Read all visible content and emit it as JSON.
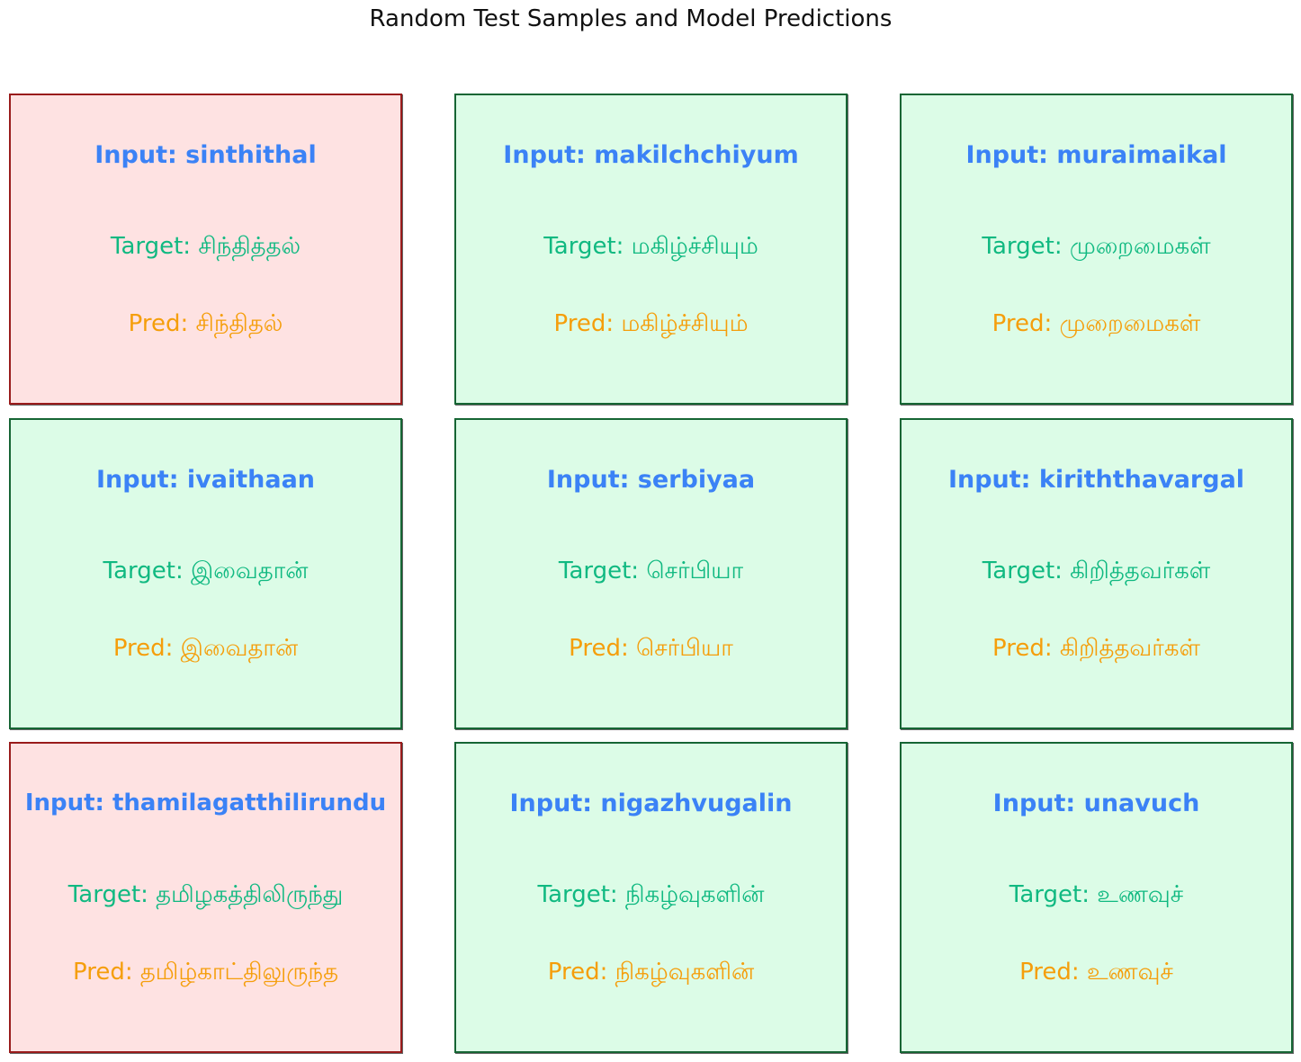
{
  "title": "Random Test Samples and Model Predictions",
  "colors": {
    "input_text": "#3B82F6",
    "target_text": "#10B981",
    "pred_text": "#F59E0B",
    "correct_fill": "#DCFCE7",
    "correct_border": "#166534",
    "wrong_fill": "#FEE2E2",
    "wrong_border": "#991B1B"
  },
  "chart_data": {
    "type": "table",
    "title": "Random Test Samples and Model Predictions",
    "rows": 3,
    "cols": 3,
    "samples": [
      {
        "input": "Input: sinthithal",
        "target": "Target: சிந்தித்தல்",
        "pred": "Pred: சிந்திதல்",
        "correct": false
      },
      {
        "input": "Input: makilchchiyum",
        "target": "Target: மகிழ்ச்சியும்",
        "pred": "Pred: மகிழ்ச்சியும்",
        "correct": true
      },
      {
        "input": "Input: muraimaikal",
        "target": "Target: முறைமைகள்",
        "pred": "Pred: முறைமைகள்",
        "correct": true
      },
      {
        "input": "Input: ivaithaan",
        "target": "Target: இவைதான்",
        "pred": "Pred: இவைதான்",
        "correct": true
      },
      {
        "input": "Input: serbiyaa",
        "target": "Target: செர்பியா",
        "pred": "Pred: செர்பியா",
        "correct": true
      },
      {
        "input": "Input: kiriththavargal",
        "target": "Target: கிறித்தவர்கள்",
        "pred": "Pred: கிறித்தவர்கள்",
        "correct": true
      },
      {
        "input": "Input: thamilagatthilirundu",
        "target": "Target: தமிழகத்திலிருந்து",
        "pred": "Pred: தமிழ்காட்திலுருந்த",
        "correct": false
      },
      {
        "input": "Input: nigazhvugalin",
        "target": "Target: நிகழ்வுகளின்",
        "pred": "Pred: நிகழ்வுகளின்",
        "correct": true
      },
      {
        "input": "Input: unavuch",
        "target": "Target: உணவுச்",
        "pred": "Pred: உணவுச்",
        "correct": true
      }
    ]
  }
}
